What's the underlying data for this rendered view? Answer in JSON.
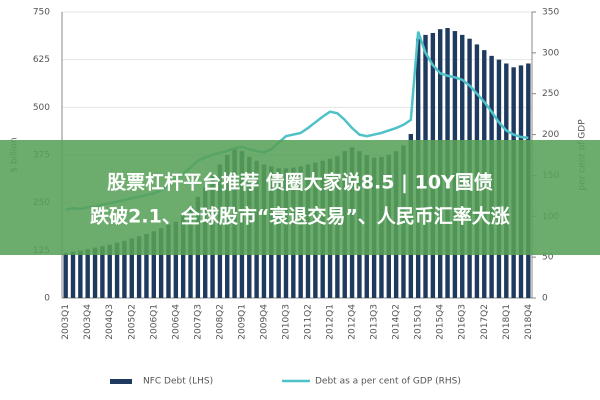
{
  "chart_data": {
    "type": "bar",
    "y_label": "$ billion",
    "y2_label": "per cent of GDP",
    "categories": [
      "2003Q1",
      null,
      null,
      "2003Q4",
      null,
      null,
      "2004Q3",
      null,
      null,
      "2005Q2",
      null,
      null,
      "2006Q1",
      null,
      null,
      "2006Q4",
      null,
      null,
      "2007Q3",
      null,
      null,
      "2008Q2",
      null,
      null,
      "2009Q1",
      null,
      null,
      "2009Q4",
      null,
      null,
      "2010Q3",
      null,
      null,
      "2011Q2",
      null,
      null,
      "2012Q1",
      null,
      null,
      "2012Q4",
      null,
      null,
      "2013Q3",
      null,
      null,
      "2014Q2",
      null,
      null,
      "2015Q1",
      null,
      null,
      "2015Q4",
      null,
      null,
      "2016Q3",
      null,
      null,
      "2017Q2",
      null,
      null,
      "2018Q1",
      null,
      null,
      "2018Q4"
    ],
    "series": [
      {
        "name": "NFC Debt (LHS)",
        "type": "bar",
        "color": "#1f3a5f",
        "values": [
          118,
          121,
          124,
          128,
          132,
          136,
          140,
          145,
          150,
          156,
          162,
          168,
          175,
          183,
          192,
          200,
          220,
          240,
          265,
          290,
          320,
          350,
          375,
          390,
          385,
          370,
          360,
          350,
          345,
          340,
          340,
          342,
          345,
          350,
          355,
          360,
          365,
          372,
          385,
          395,
          385,
          375,
          368,
          370,
          375,
          385,
          400,
          430,
          680,
          690,
          695,
          705,
          708,
          700,
          690,
          680,
          665,
          650,
          635,
          625,
          615,
          605,
          610,
          615
        ]
      },
      {
        "name": "Debt as a per cent of GDP (RHS)",
        "type": "line",
        "axis": "y2",
        "color": "#4fc1c9",
        "values": [
          108,
          110,
          109,
          111,
          112,
          114,
          116,
          118,
          120,
          122,
          124,
          126,
          128,
          132,
          138,
          145,
          152,
          160,
          168,
          172,
          175,
          178,
          180,
          183,
          185,
          182,
          180,
          178,
          182,
          190,
          198,
          200,
          202,
          208,
          215,
          222,
          228,
          226,
          218,
          208,
          200,
          198,
          200,
          202,
          205,
          208,
          212,
          218,
          326,
          300,
          285,
          275,
          272,
          270,
          267,
          260,
          250,
          240,
          228,
          215,
          205,
          200,
          197,
          196
        ]
      }
    ],
    "ylim": [
      0,
      750
    ],
    "yticks": [
      0,
      125,
      250,
      375,
      500,
      625,
      750
    ],
    "y2lim": [
      0,
      350
    ],
    "y2ticks": [
      0,
      50,
      100,
      150,
      200,
      250,
      300,
      350
    ],
    "grid": true
  },
  "banner": {
    "line1": "股票杠杆平台推荐 债圈大家说8.5 | 10Y国债",
    "line2": "跌破2.1、全球股市“衰退交易”、人民币汇率大涨"
  }
}
